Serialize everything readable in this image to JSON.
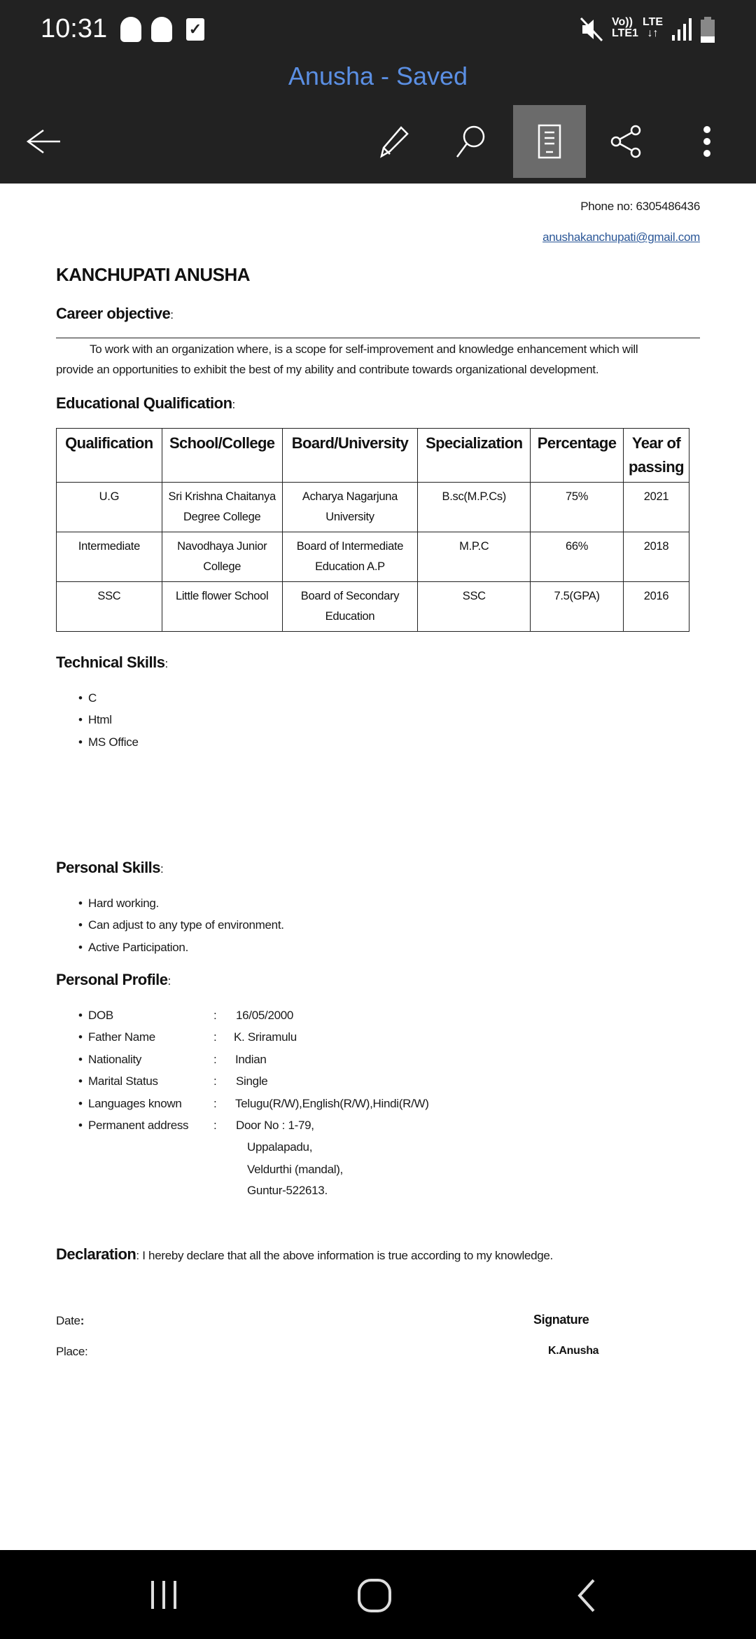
{
  "status_bar": {
    "time": "10:31",
    "left_icons": [
      "snapchat-ghost-icon",
      "snapchat-ghost-icon",
      "checkbox-notification-icon"
    ],
    "right_icons": [
      "mute-icon",
      "volte-icon",
      "signal-icon",
      "battery-icon"
    ],
    "volte_label": "Vo))",
    "lte1_label": "LTE1",
    "lte_label": "LTE"
  },
  "app_bar": {
    "title": "Anusha - Saved",
    "title_color": "#5b8fe3",
    "actions": [
      "back-arrow-icon",
      "edit-pencil-icon",
      "search-icon",
      "mobile-view-icon",
      "share-icon",
      "more-options-icon"
    ],
    "active_action": "mobile-view-icon"
  },
  "document": {
    "phone": "Phone no: 6305486436",
    "email": "anushakanchupati@gmail.com",
    "name": "KANCHUPATI ANUSHA",
    "career_objective": {
      "heading": "Career objective",
      "line1": "To work with an organization where, is a scope for self-improvement and knowledge enhancement which will",
      "line2": "provide an opportunities to exhibit the best of my ability and contribute towards organizational development."
    },
    "education": {
      "heading": "Educational Qualification",
      "headers": [
        "Qualification",
        "School/College",
        "Board/University",
        "Specialization",
        "Percentage",
        "Year of passing"
      ],
      "rows": [
        [
          "U.G",
          "Sri Krishna Chaitanya Degree College",
          "Acharya Nagarjuna University",
          "B.sc(M.P.Cs)",
          "75%",
          "2021"
        ],
        [
          "Intermediate",
          "Navodhaya Junior College",
          "Board of Intermediate Education A.P",
          "M.P.C",
          "66%",
          "2018"
        ],
        [
          "SSC",
          "Little flower School",
          "Board of Secondary Education",
          "SSC",
          "7.5(GPA)",
          "2016"
        ]
      ]
    },
    "technical_skills": {
      "heading": "Technical Skills",
      "items": [
        "C",
        "Html",
        "MS Office"
      ]
    },
    "personal_skills": {
      "heading": "Personal Skills",
      "items": [
        "Hard working.",
        "Can adjust to any type of environment.",
        "Active Participation."
      ]
    },
    "personal_profile": {
      "heading": "Personal Profile",
      "items": [
        {
          "label": "DOB",
          "value": "16/05/2000"
        },
        {
          "label": "Father Name",
          "value": "K. Sriramulu"
        },
        {
          "label": "Nationality",
          "value": "Indian"
        },
        {
          "label": "Marital Status",
          "value": "Single"
        },
        {
          "label": "Languages known",
          "value": "Telugu(R/W),English(R/W),Hindi(R/W)"
        },
        {
          "label": "Permanent address",
          "value": "Door No : 1-79,"
        }
      ],
      "address_lines": [
        "Uppalapadu,",
        "Veldurthi (mandal),",
        "Guntur-522613."
      ]
    },
    "declaration": {
      "heading": "Declaration",
      "text": "I hereby declare that all the above information is true according to my knowledge."
    },
    "date_label": "Date",
    "place_label": "Place:",
    "signature_label": "Signature",
    "signature_name": "K.Anusha"
  },
  "nav_bar": {
    "buttons": [
      "recent-apps-icon",
      "home-icon",
      "back-icon"
    ]
  }
}
